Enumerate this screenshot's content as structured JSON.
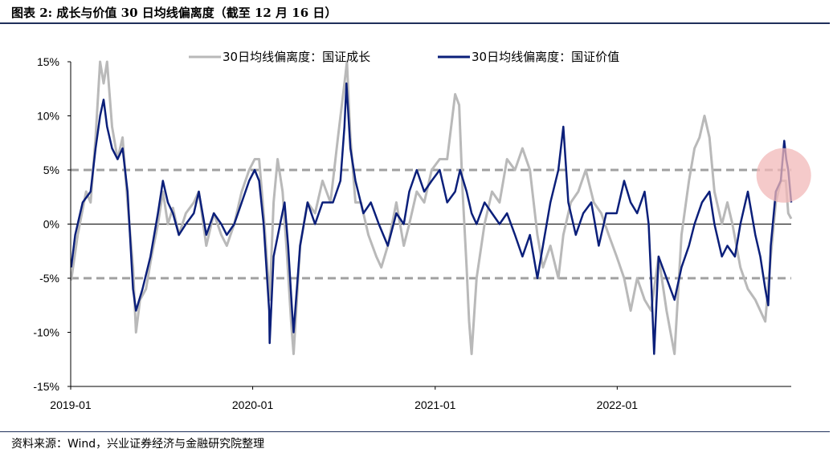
{
  "header": {
    "title": "图表 2:  成长与价值 30 日均线偏离度（截至 12 月 16 日）"
  },
  "footer": {
    "source": "资料来源：Wind，兴业证券经济与金融研究院整理"
  },
  "chart_data": {
    "type": "line",
    "title": "",
    "xlabel": "",
    "ylabel": "",
    "ylim": [
      -0.15,
      0.15
    ],
    "yticks": [
      0.15,
      0.1,
      0.05,
      0.0,
      -0.05,
      -0.1,
      -0.15
    ],
    "ytick_labels": [
      "15%",
      "10%",
      "5%",
      "0%",
      "-5%",
      "-10%",
      "-15%"
    ],
    "xticks": [
      "2019-01",
      "2020-01",
      "2021-01",
      "2022-01"
    ],
    "xrange": [
      "2019-01-01",
      "2022-12-16"
    ],
    "legend_position": "top",
    "reference_lines": [
      {
        "y": 0.05,
        "style": "dashed",
        "color": "#a0a0a0"
      },
      {
        "y": -0.05,
        "style": "dashed",
        "color": "#a0a0a0"
      },
      {
        "y": 0.0,
        "style": "solid",
        "color": "#000000"
      }
    ],
    "highlight": {
      "date": "2022-12-01",
      "y": 0.045,
      "color": "#f2b8b8"
    },
    "series": [
      {
        "name": "30日均线偏离度：国证成长",
        "color": "#b9b9b9",
        "points": [
          [
            "2019-01-02",
            -0.052
          ],
          [
            "2019-01-15",
            -0.01
          ],
          [
            "2019-02-01",
            0.03
          ],
          [
            "2019-02-10",
            0.02
          ],
          [
            "2019-02-20",
            0.08
          ],
          [
            "2019-03-01",
            0.15
          ],
          [
            "2019-03-08",
            0.13
          ],
          [
            "2019-03-15",
            0.15
          ],
          [
            "2019-03-25",
            0.09
          ],
          [
            "2019-04-05",
            0.06
          ],
          [
            "2019-04-15",
            0.08
          ],
          [
            "2019-04-25",
            0.02
          ],
          [
            "2019-05-06",
            -0.04
          ],
          [
            "2019-05-12",
            -0.1
          ],
          [
            "2019-05-20",
            -0.07
          ],
          [
            "2019-06-01",
            -0.06
          ],
          [
            "2019-06-12",
            -0.03
          ],
          [
            "2019-06-25",
            0.0
          ],
          [
            "2019-07-05",
            0.03
          ],
          [
            "2019-07-15",
            0.0
          ],
          [
            "2019-07-25",
            0.015
          ],
          [
            "2019-08-06",
            -0.01
          ],
          [
            "2019-08-20",
            0.01
          ],
          [
            "2019-09-05",
            0.02
          ],
          [
            "2019-09-15",
            0.03
          ],
          [
            "2019-09-30",
            -0.02
          ],
          [
            "2019-10-15",
            0.01
          ],
          [
            "2019-10-30",
            -0.01
          ],
          [
            "2019-11-10",
            -0.02
          ],
          [
            "2019-11-25",
            0.0
          ],
          [
            "2019-12-10",
            0.03
          ],
          [
            "2019-12-25",
            0.05
          ],
          [
            "2020-01-05",
            0.06
          ],
          [
            "2020-01-14",
            0.06
          ],
          [
            "2020-01-23",
            0.01
          ],
          [
            "2020-02-04",
            -0.07
          ],
          [
            "2020-02-12",
            0.02
          ],
          [
            "2020-02-20",
            0.06
          ],
          [
            "2020-03-01",
            0.03
          ],
          [
            "2020-03-10",
            -0.03
          ],
          [
            "2020-03-18",
            -0.09
          ],
          [
            "2020-03-23",
            -0.12
          ],
          [
            "2020-04-05",
            -0.02
          ],
          [
            "2020-04-20",
            0.02
          ],
          [
            "2020-05-05",
            0.01
          ],
          [
            "2020-05-20",
            0.04
          ],
          [
            "2020-06-05",
            0.02
          ],
          [
            "2020-06-20",
            0.08
          ],
          [
            "2020-07-03",
            0.13
          ],
          [
            "2020-07-08",
            0.15
          ],
          [
            "2020-07-15",
            0.08
          ],
          [
            "2020-07-25",
            0.02
          ],
          [
            "2020-08-05",
            0.02
          ],
          [
            "2020-08-20",
            -0.01
          ],
          [
            "2020-09-05",
            -0.03
          ],
          [
            "2020-09-15",
            -0.04
          ],
          [
            "2020-09-28",
            -0.02
          ],
          [
            "2020-10-15",
            0.02
          ],
          [
            "2020-10-30",
            -0.02
          ],
          [
            "2020-11-10",
            0.0
          ],
          [
            "2020-11-25",
            0.03
          ],
          [
            "2020-12-10",
            0.02
          ],
          [
            "2020-12-25",
            0.05
          ],
          [
            "2021-01-10",
            0.06
          ],
          [
            "2021-01-25",
            0.06
          ],
          [
            "2021-02-10",
            0.12
          ],
          [
            "2021-02-18",
            0.11
          ],
          [
            "2021-02-25",
            0.03
          ],
          [
            "2021-03-05",
            -0.04
          ],
          [
            "2021-03-10",
            -0.09
          ],
          [
            "2021-03-15",
            -0.12
          ],
          [
            "2021-03-25",
            -0.05
          ],
          [
            "2021-04-10",
            0.0
          ],
          [
            "2021-04-25",
            0.03
          ],
          [
            "2021-05-10",
            0.02
          ],
          [
            "2021-05-25",
            0.06
          ],
          [
            "2021-06-10",
            0.05
          ],
          [
            "2021-06-25",
            0.07
          ],
          [
            "2021-07-10",
            0.05
          ],
          [
            "2021-07-25",
            -0.01
          ],
          [
            "2021-08-05",
            -0.04
          ],
          [
            "2021-08-20",
            -0.02
          ],
          [
            "2021-09-05",
            -0.05
          ],
          [
            "2021-09-15",
            -0.01
          ],
          [
            "2021-09-30",
            0.02
          ],
          [
            "2021-10-15",
            0.03
          ],
          [
            "2021-10-30",
            0.05
          ],
          [
            "2021-11-15",
            0.02
          ],
          [
            "2021-11-30",
            0.01
          ],
          [
            "2021-12-15",
            -0.01
          ],
          [
            "2021-12-31",
            -0.03
          ],
          [
            "2022-01-15",
            -0.05
          ],
          [
            "2022-01-28",
            -0.08
          ],
          [
            "2022-02-10",
            -0.05
          ],
          [
            "2022-02-25",
            -0.07
          ],
          [
            "2022-03-10",
            -0.08
          ],
          [
            "2022-03-16",
            -0.06
          ],
          [
            "2022-03-25",
            -0.03
          ],
          [
            "2022-04-10",
            -0.08
          ],
          [
            "2022-04-26",
            -0.12
          ],
          [
            "2022-05-10",
            -0.01
          ],
          [
            "2022-05-25",
            0.04
          ],
          [
            "2022-06-05",
            0.07
          ],
          [
            "2022-06-15",
            0.08
          ],
          [
            "2022-06-25",
            0.1
          ],
          [
            "2022-07-05",
            0.08
          ],
          [
            "2022-07-15",
            0.03
          ],
          [
            "2022-07-30",
            0.0
          ],
          [
            "2022-08-10",
            0.02
          ],
          [
            "2022-08-20",
            0.0
          ],
          [
            "2022-09-05",
            -0.04
          ],
          [
            "2022-09-20",
            -0.06
          ],
          [
            "2022-10-05",
            -0.07
          ],
          [
            "2022-10-15",
            -0.08
          ],
          [
            "2022-10-25",
            -0.09
          ],
          [
            "2022-11-05",
            -0.03
          ],
          [
            "2022-11-15",
            0.02
          ],
          [
            "2022-11-25",
            0.04
          ],
          [
            "2022-12-05",
            0.04
          ],
          [
            "2022-12-10",
            0.01
          ],
          [
            "2022-12-16",
            0.005
          ]
        ]
      },
      {
        "name": "30日均线偏离度：国证价值",
        "color": "#0b1f7a",
        "points": [
          [
            "2019-01-02",
            -0.04
          ],
          [
            "2019-01-10",
            -0.01
          ],
          [
            "2019-01-25",
            0.02
          ],
          [
            "2019-02-10",
            0.03
          ],
          [
            "2019-02-20",
            0.07
          ],
          [
            "2019-03-01",
            0.1
          ],
          [
            "2019-03-08",
            0.115
          ],
          [
            "2019-03-15",
            0.09
          ],
          [
            "2019-03-25",
            0.07
          ],
          [
            "2019-04-05",
            0.06
          ],
          [
            "2019-04-15",
            0.07
          ],
          [
            "2019-04-25",
            0.03
          ],
          [
            "2019-05-06",
            -0.06
          ],
          [
            "2019-05-12",
            -0.08
          ],
          [
            "2019-05-25",
            -0.06
          ],
          [
            "2019-06-10",
            -0.03
          ],
          [
            "2019-06-25",
            0.01
          ],
          [
            "2019-07-05",
            0.04
          ],
          [
            "2019-07-15",
            0.02
          ],
          [
            "2019-07-25",
            0.01
          ],
          [
            "2019-08-06",
            -0.01
          ],
          [
            "2019-08-20",
            0.0
          ],
          [
            "2019-09-05",
            0.01
          ],
          [
            "2019-09-15",
            0.03
          ],
          [
            "2019-09-30",
            -0.01
          ],
          [
            "2019-10-15",
            0.01
          ],
          [
            "2019-10-30",
            0.0
          ],
          [
            "2019-11-10",
            -0.01
          ],
          [
            "2019-11-25",
            0.0
          ],
          [
            "2019-12-10",
            0.02
          ],
          [
            "2019-12-25",
            0.04
          ],
          [
            "2020-01-05",
            0.05
          ],
          [
            "2020-01-14",
            0.04
          ],
          [
            "2020-01-23",
            0.0
          ],
          [
            "2020-02-03",
            -0.08
          ],
          [
            "2020-02-04",
            -0.11
          ],
          [
            "2020-02-12",
            -0.03
          ],
          [
            "2020-02-25",
            0.0
          ],
          [
            "2020-03-05",
            0.02
          ],
          [
            "2020-03-12",
            -0.02
          ],
          [
            "2020-03-20",
            -0.08
          ],
          [
            "2020-03-23",
            -0.1
          ],
          [
            "2020-04-05",
            -0.02
          ],
          [
            "2020-04-20",
            0.02
          ],
          [
            "2020-05-05",
            0.0
          ],
          [
            "2020-05-20",
            0.02
          ],
          [
            "2020-06-10",
            0.02
          ],
          [
            "2020-06-25",
            0.04
          ],
          [
            "2020-07-03",
            0.09
          ],
          [
            "2020-07-07",
            0.13
          ],
          [
            "2020-07-15",
            0.07
          ],
          [
            "2020-07-25",
            0.04
          ],
          [
            "2020-08-10",
            0.01
          ],
          [
            "2020-08-25",
            0.02
          ],
          [
            "2020-09-10",
            0.0
          ],
          [
            "2020-09-28",
            -0.02
          ],
          [
            "2020-10-15",
            0.01
          ],
          [
            "2020-10-30",
            0.0
          ],
          [
            "2020-11-10",
            0.03
          ],
          [
            "2020-11-25",
            0.05
          ],
          [
            "2020-12-10",
            0.03
          ],
          [
            "2020-12-25",
            0.04
          ],
          [
            "2021-01-10",
            0.05
          ],
          [
            "2021-01-25",
            0.02
          ],
          [
            "2021-02-10",
            0.03
          ],
          [
            "2021-02-20",
            0.05
          ],
          [
            "2021-03-05",
            0.03
          ],
          [
            "2021-03-15",
            0.01
          ],
          [
            "2021-03-25",
            0.0
          ],
          [
            "2021-04-10",
            0.02
          ],
          [
            "2021-04-25",
            0.01
          ],
          [
            "2021-05-10",
            0.0
          ],
          [
            "2021-05-25",
            0.01
          ],
          [
            "2021-06-10",
            -0.01
          ],
          [
            "2021-06-25",
            -0.03
          ],
          [
            "2021-07-10",
            -0.01
          ],
          [
            "2021-07-25",
            -0.05
          ],
          [
            "2021-08-05",
            -0.02
          ],
          [
            "2021-08-20",
            0.02
          ],
          [
            "2021-09-05",
            0.05
          ],
          [
            "2021-09-15",
            0.09
          ],
          [
            "2021-09-25",
            0.02
          ],
          [
            "2021-10-10",
            -0.01
          ],
          [
            "2021-10-25",
            0.01
          ],
          [
            "2021-11-10",
            0.02
          ],
          [
            "2021-11-25",
            -0.02
          ],
          [
            "2021-12-10",
            0.01
          ],
          [
            "2021-12-31",
            0.01
          ],
          [
            "2022-01-15",
            0.04
          ],
          [
            "2022-01-28",
            0.02
          ],
          [
            "2022-02-10",
            0.01
          ],
          [
            "2022-02-25",
            0.03
          ],
          [
            "2022-03-05",
            0.0
          ],
          [
            "2022-03-10",
            -0.05
          ],
          [
            "2022-03-16",
            -0.12
          ],
          [
            "2022-03-25",
            -0.03
          ],
          [
            "2022-04-10",
            -0.05
          ],
          [
            "2022-04-26",
            -0.07
          ],
          [
            "2022-05-10",
            -0.04
          ],
          [
            "2022-05-25",
            -0.02
          ],
          [
            "2022-06-05",
            0.0
          ],
          [
            "2022-06-20",
            0.02
          ],
          [
            "2022-07-05",
            0.03
          ],
          [
            "2022-07-15",
            0.0
          ],
          [
            "2022-07-30",
            -0.03
          ],
          [
            "2022-08-10",
            -0.02
          ],
          [
            "2022-08-25",
            -0.03
          ],
          [
            "2022-09-05",
            0.0
          ],
          [
            "2022-09-20",
            0.03
          ],
          [
            "2022-10-05",
            -0.01
          ],
          [
            "2022-10-15",
            -0.03
          ],
          [
            "2022-10-25",
            -0.06
          ],
          [
            "2022-10-31",
            -0.075
          ],
          [
            "2022-11-05",
            -0.02
          ],
          [
            "2022-11-15",
            0.03
          ],
          [
            "2022-11-25",
            0.04
          ],
          [
            "2022-12-02",
            0.077
          ],
          [
            "2022-12-06",
            0.06
          ],
          [
            "2022-12-10",
            0.05
          ],
          [
            "2022-12-16",
            0.02
          ]
        ]
      }
    ]
  }
}
